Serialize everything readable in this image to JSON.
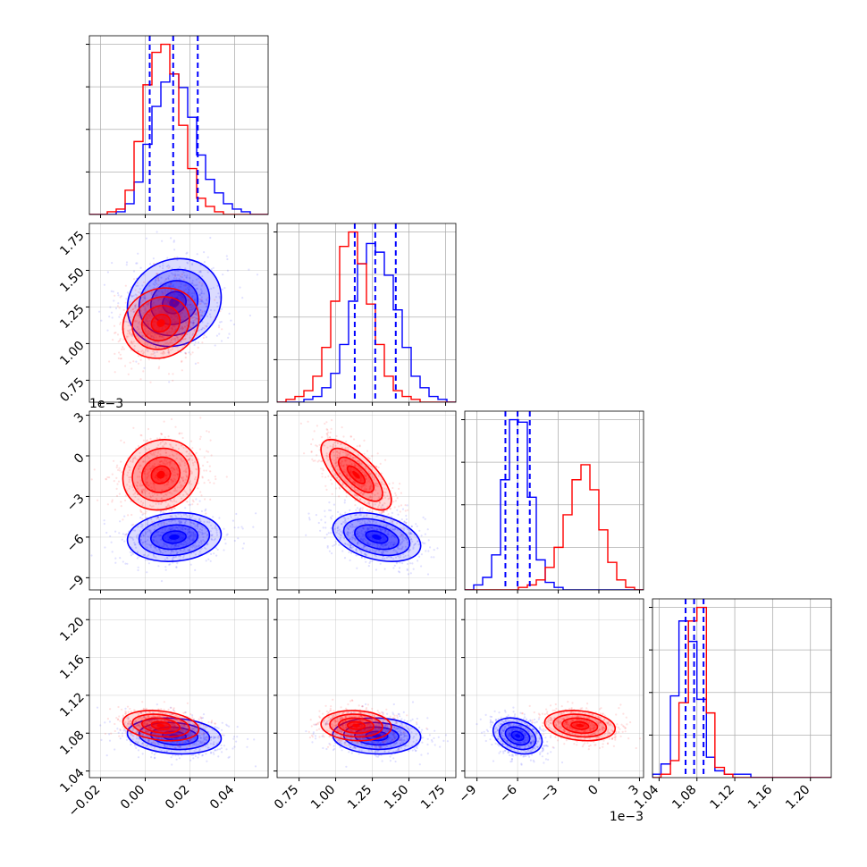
{
  "chart_data": {
    "type": "corner",
    "title": "",
    "colors": {
      "blue": "#0000ff",
      "red": "#ff0000",
      "grid": "#b0b0b0",
      "axis": "#000000"
    },
    "params": [
      {
        "range": [
          -0.025,
          0.055
        ],
        "ticks": [
          -0.02,
          0.0,
          0.02,
          0.04
        ],
        "tick_labels": [
          "−0.02",
          "0.00",
          "0.02",
          "0.04"
        ],
        "offset_label": ""
      },
      {
        "range": [
          0.6,
          1.82
        ],
        "ticks": [
          0.75,
          1.0,
          1.25,
          1.5,
          1.75
        ],
        "tick_labels": [
          "0.75",
          "1.00",
          "1.25",
          "1.50",
          "1.75"
        ],
        "offset_label": ""
      },
      {
        "range": [
          -0.0099,
          0.0033
        ],
        "ticks": [
          -0.009,
          -0.006,
          -0.003,
          0.0,
          0.003
        ],
        "tick_labels": [
          "−9",
          "−6",
          "−3",
          "0",
          "3"
        ],
        "offset_label": "1e−3"
      },
      {
        "range": [
          1.033,
          1.222
        ],
        "ticks": [
          1.04,
          1.08,
          1.12,
          1.16,
          1.2
        ],
        "tick_labels": [
          "1.04",
          "1.08",
          "1.12",
          "1.16",
          "1.20"
        ],
        "offset_label": ""
      }
    ],
    "series": [
      {
        "color": "blue",
        "mean": [
          0.013,
          1.28,
          -0.006,
          1.077
        ],
        "sd": [
          0.0105,
          0.15,
          0.0009,
          0.0095
        ]
      },
      {
        "color": "red",
        "mean": [
          0.007,
          1.14,
          -0.0014,
          1.088
        ],
        "sd": [
          0.0085,
          0.12,
          0.0013,
          0.008
        ]
      }
    ],
    "quantile_lines": {
      "color": "blue",
      "values": [
        [
          0.002,
          0.0125,
          0.0235
        ],
        [
          1.13,
          1.27,
          1.41
        ],
        [
          -0.0069,
          -0.006,
          -0.0051
        ],
        [
          1.068,
          1.077,
          1.087
        ]
      ]
    },
    "histograms": [
      {
        "edges": [
          -0.025,
          -0.021,
          -0.017,
          -0.013,
          -0.009,
          -0.005,
          -0.001,
          0.003,
          0.007,
          0.011,
          0.015,
          0.019,
          0.023,
          0.027,
          0.031,
          0.035,
          0.039,
          0.043,
          0.047,
          0.051,
          0.055
        ],
        "blue": [
          0,
          0,
          0,
          1,
          4,
          12,
          26,
          40,
          49,
          52,
          47,
          36,
          22,
          13,
          8,
          4,
          2,
          1,
          0,
          0
        ],
        "red": [
          0,
          0,
          1,
          2,
          9,
          27,
          48,
          60,
          63,
          52,
          33,
          17,
          6,
          3,
          1,
          0,
          0,
          0,
          0,
          0
        ]
      },
      {
        "edges": [
          0.6,
          0.661,
          0.722,
          0.783,
          0.844,
          0.905,
          0.966,
          1.027,
          1.088,
          1.149,
          1.21,
          1.271,
          1.332,
          1.393,
          1.454,
          1.515,
          1.576,
          1.637,
          1.698,
          1.759,
          1.82
        ],
        "blue": [
          0,
          0,
          0,
          1,
          2,
          5,
          10,
          20,
          35,
          48,
          55,
          52,
          44,
          32,
          19,
          9,
          5,
          2,
          1,
          0
        ],
        "red": [
          0,
          1,
          2,
          4,
          9,
          19,
          35,
          54,
          59,
          48,
          34,
          20,
          9,
          4,
          2,
          1,
          0,
          0,
          0,
          0
        ]
      },
      {
        "edges": [
          -0.0099,
          -0.00924,
          -0.00858,
          -0.00792,
          -0.00726,
          -0.0066,
          -0.00594,
          -0.00528,
          -0.00462,
          -0.00396,
          -0.0033,
          -0.00264,
          -0.00198,
          -0.00132,
          -0.00066,
          0.0,
          0.00066,
          0.00132,
          0.00198,
          0.00264,
          0.0033
        ],
        "blue": [
          0,
          2,
          5,
          14,
          44,
          68,
          67,
          37,
          12,
          3,
          1,
          0,
          0,
          0,
          0,
          0,
          0,
          0,
          0,
          0
        ],
        "red": [
          0,
          0,
          0,
          0,
          0,
          0,
          1,
          2,
          4,
          9,
          17,
          30,
          44,
          50,
          40,
          24,
          11,
          4,
          1,
          0
        ]
      },
      {
        "edges": [
          1.033,
          1.042,
          1.052,
          1.061,
          1.071,
          1.08,
          1.09,
          1.099,
          1.109,
          1.118,
          1.128,
          1.137,
          1.146,
          1.156,
          1.165,
          1.175,
          1.184,
          1.194,
          1.203,
          1.213,
          1.222
        ],
        "blue": [
          1,
          4,
          24,
          46,
          40,
          23,
          6,
          2,
          1,
          1,
          1,
          0,
          0,
          0,
          0,
          0,
          0,
          0,
          0,
          0
        ],
        "red": [
          0,
          1,
          5,
          22,
          46,
          50,
          19,
          3,
          1,
          0,
          0,
          0,
          0,
          0,
          0,
          0,
          0,
          0,
          0,
          0
        ]
      }
    ],
    "contour_levels_sigma": [
      0.5,
      1.0,
      1.5,
      2.0
    ],
    "grid": true,
    "legend": "none"
  }
}
